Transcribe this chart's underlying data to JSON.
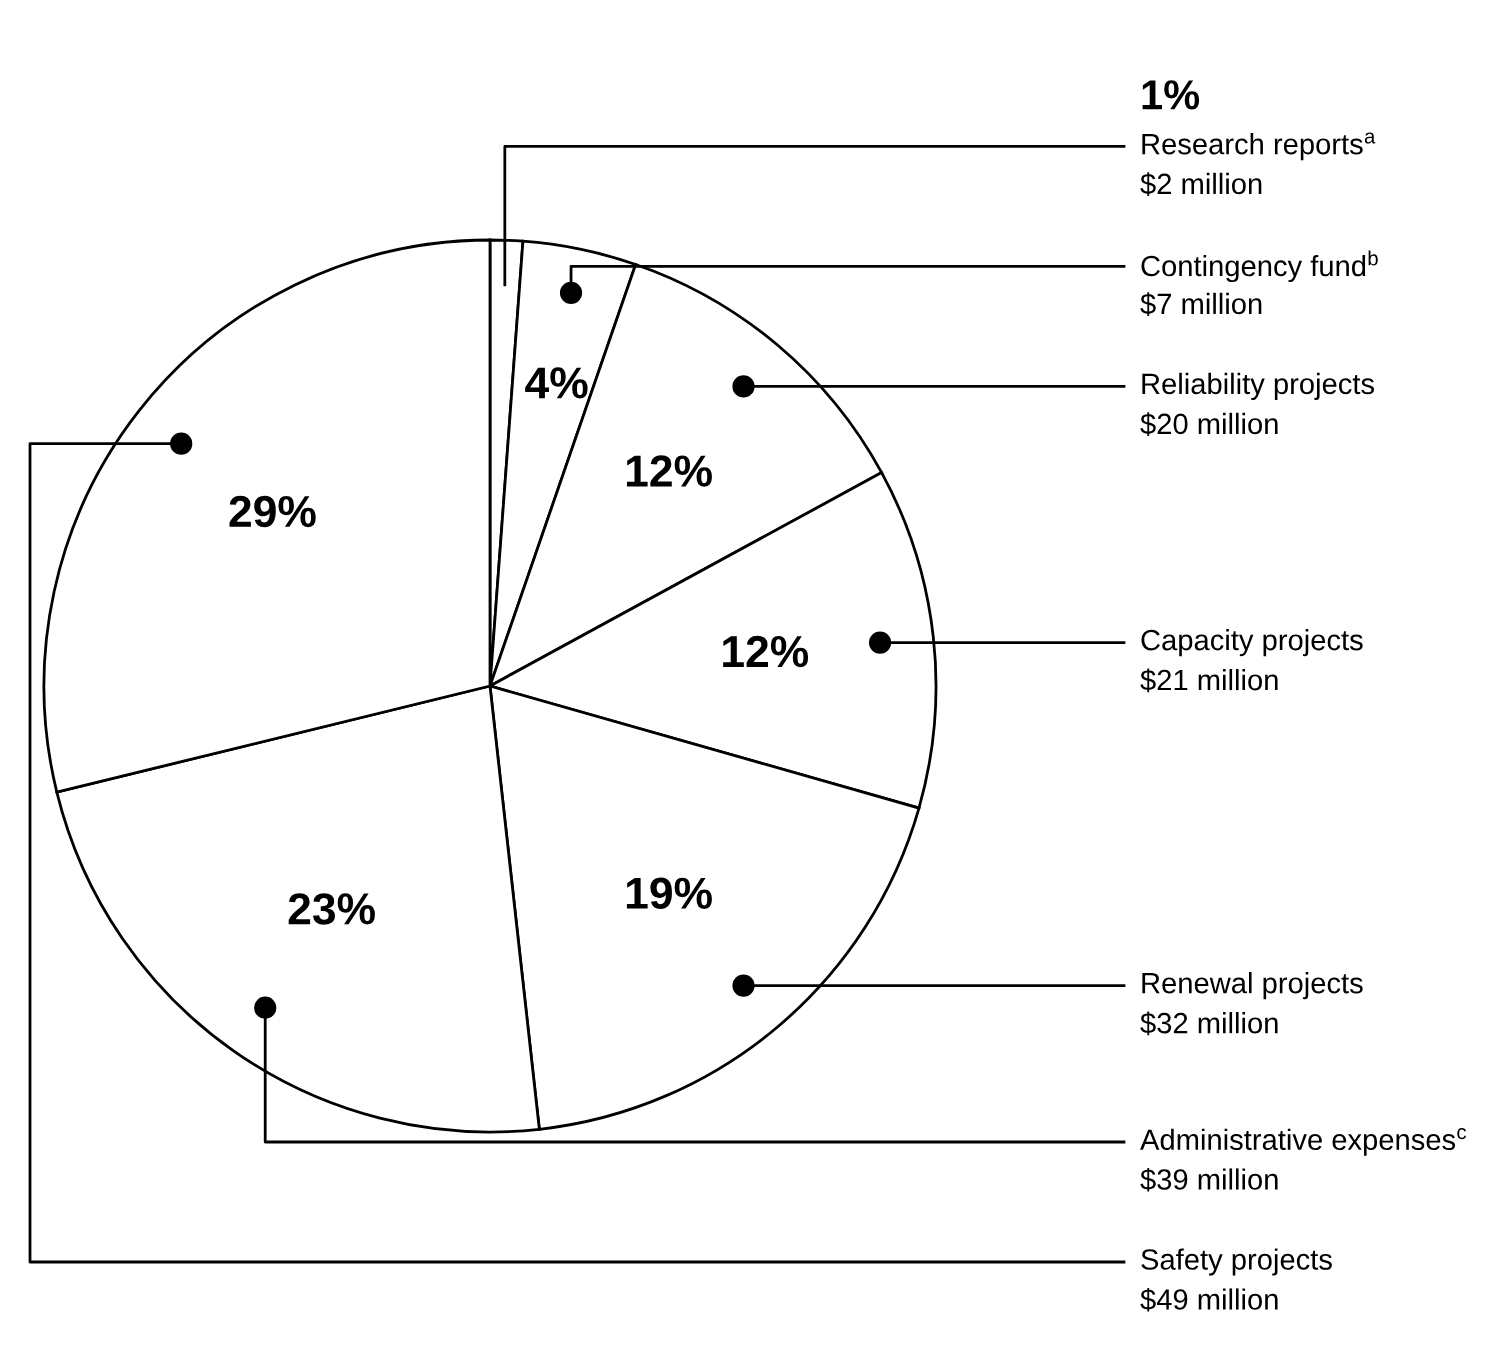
{
  "chart_data": {
    "type": "pie",
    "categories": [
      "Research reports$^{a}$",
      "Contingency fund$^{b}$",
      "Reliability projects",
      "Capacity projects",
      "Renewal projects",
      "Administrative expenses$^{c}$",
      "Safety projects"
    ],
    "values": [
      2,
      7,
      20,
      21,
      32,
      39,
      49
    ],
    "value_labels": [
      "$2 million",
      "$7 million",
      "$20 million",
      "$21 million",
      "$32 million",
      "$39 million",
      "$49 million"
    ],
    "colors": [
      "#ffffff",
      "#ffffff",
      "#ffffff",
      "#ffffff",
      "#ffffff",
      "#ffffff",
      "#ffffff"
    ],
    "annotations": [
      "1%",
      "4%",
      "12%",
      "12%",
      "19%",
      "23%",
      "29%"
    ]
  }
}
